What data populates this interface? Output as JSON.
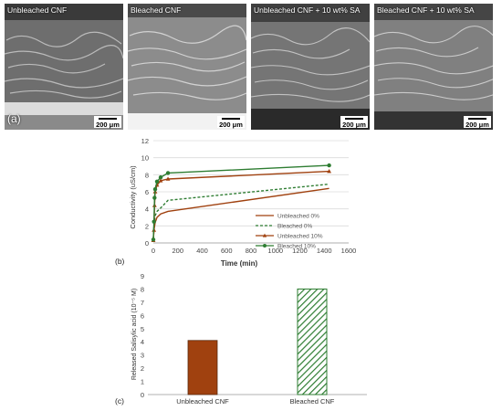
{
  "sem_panels": [
    {
      "label": "Unbleached CNF",
      "scale": "200 μm"
    },
    {
      "label": "Bleached CNF",
      "scale": "200 μm"
    },
    {
      "label": "Unbleached CNF + 10 wt% SA",
      "scale": "200 μm"
    },
    {
      "label": "Bleached CNF + 10 wt% SA",
      "scale": "200 μm"
    }
  ],
  "panel_labels": {
    "a": "(a)",
    "b": "(b)",
    "c": "(c)"
  },
  "colors": {
    "brown": "#a0410f",
    "green": "#2e7d32"
  },
  "chart_data": [
    {
      "type": "line",
      "xlabel": "Time (min)",
      "ylabel": "Conductivity (uS/cm)",
      "xlim": [
        0,
        1600
      ],
      "ylim": [
        0,
        12
      ],
      "xticks": [
        0,
        200,
        400,
        600,
        800,
        1000,
        1200,
        1400,
        1600
      ],
      "yticks": [
        0,
        2,
        4,
        6,
        8,
        10,
        12
      ],
      "legend_position": "lower-right",
      "series": [
        {
          "name": "Unbleached 0%",
          "color": "#a0410f",
          "style": "solid",
          "marker": "none",
          "x": [
            0,
            5,
            15,
            30,
            60,
            120,
            1440
          ],
          "y": [
            0.5,
            1.5,
            2.4,
            3.0,
            3.4,
            3.7,
            6.4
          ]
        },
        {
          "name": "Bleached 0%",
          "color": "#2e7d32",
          "style": "dashed",
          "marker": "none",
          "x": [
            0,
            5,
            15,
            30,
            60,
            120,
            1440
          ],
          "y": [
            0.5,
            2.0,
            3.2,
            3.7,
            4.1,
            5.0,
            6.9
          ]
        },
        {
          "name": "Unbleached 10%",
          "color": "#a0410f",
          "style": "solid",
          "marker": "triangle",
          "x": [
            0,
            5,
            10,
            15,
            30,
            60,
            120,
            1440
          ],
          "y": [
            0.3,
            1.5,
            4.4,
            6.0,
            6.8,
            7.3,
            7.5,
            8.4
          ]
        },
        {
          "name": "Bleached 10%",
          "color": "#2e7d32",
          "style": "solid",
          "marker": "circle",
          "x": [
            0,
            5,
            10,
            15,
            30,
            60,
            120,
            1440
          ],
          "y": [
            0.4,
            2.5,
            5.3,
            6.3,
            7.2,
            7.7,
            8.2,
            9.1
          ]
        }
      ]
    },
    {
      "type": "bar",
      "ylabel": "Released Salisylic acid (10⁻⁵ M)",
      "ylim": [
        0,
        9
      ],
      "yticks": [
        0,
        1,
        2,
        3,
        4,
        5,
        6,
        7,
        8,
        9
      ],
      "categories": [
        "Unbleached CNF",
        "Bleached CNF"
      ],
      "values": [
        4.1,
        8.0
      ],
      "bar_styles": [
        "solid-brown",
        "hatched-green"
      ]
    }
  ]
}
